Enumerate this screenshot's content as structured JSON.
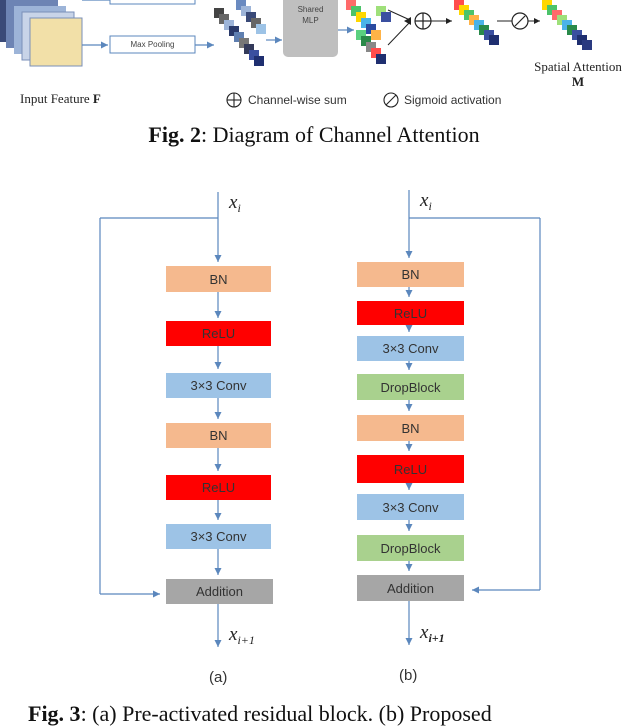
{
  "fig2": {
    "max_pooling_label": "Max Pooling",
    "shared_mlp_label": "Shared\nMLP",
    "input_feature_label": "Input Feature",
    "input_feature_symbol": "F",
    "spatial_attention_label": "Spatial Attention",
    "spatial_attention_symbol": "M",
    "legend_sum": "Channel-wise sum",
    "legend_sigmoid": "Sigmoid activation",
    "caption_prefix": "Fig. 2",
    "caption_text": ": Diagram of Channel Attention"
  },
  "fig3": {
    "input_var": "x",
    "input_sub": "i",
    "output_var": "x",
    "output_sub": "i+1",
    "block_a": {
      "sublabel": "(a)",
      "layers": [
        "BN",
        "ReLU",
        "3×3 Conv",
        "BN",
        "ReLU",
        "3×3 Conv"
      ],
      "addition": "Addition"
    },
    "block_b": {
      "sublabel": "(b)",
      "layers": [
        "BN",
        "ReLU",
        "3×3 Conv",
        "DropBlock",
        "BN",
        "ReLU",
        "3×3 Conv",
        "DropBlock"
      ],
      "addition": "Addition"
    },
    "caption_prefix": "Fig. 3",
    "caption_text": ": (a) Pre-activated residual block. (b) Proposed"
  },
  "colors": {
    "bn": "#f5b98e",
    "relu": "#ff0000",
    "conv": "#9dc3e6",
    "dropblock": "#a9d18e",
    "addition": "#a6a6a6",
    "arrow": "#5b87bd"
  }
}
